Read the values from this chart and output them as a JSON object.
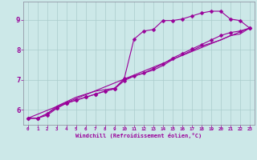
{
  "background_color": "#cce8e8",
  "grid_color": "#aacccc",
  "line_color": "#990099",
  "xlabel": "Windchill (Refroidissement éolien,°C)",
  "xlim": [
    -0.5,
    23.5
  ],
  "ylim": [
    5.5,
    9.6
  ],
  "xticks": [
    0,
    1,
    2,
    3,
    4,
    5,
    6,
    7,
    8,
    9,
    10,
    11,
    12,
    13,
    14,
    15,
    16,
    17,
    18,
    19,
    20,
    21,
    22,
    23
  ],
  "yticks": [
    6,
    7,
    8,
    9
  ],
  "line1_x": [
    0,
    1,
    2,
    3,
    4,
    5,
    6,
    7,
    8,
    9,
    10,
    11,
    12,
    13,
    14,
    15,
    16,
    17,
    18,
    19,
    20,
    21,
    22,
    23
  ],
  "line1_y": [
    5.72,
    5.72,
    5.82,
    6.05,
    6.22,
    6.32,
    6.42,
    6.52,
    6.62,
    6.7,
    7.05,
    8.35,
    8.62,
    8.67,
    8.97,
    8.97,
    9.02,
    9.12,
    9.22,
    9.28,
    9.28,
    9.02,
    8.97,
    8.72
  ],
  "line2_x": [
    0,
    1,
    2,
    3,
    4,
    5,
    6,
    7,
    8,
    9,
    10,
    11,
    12,
    13,
    14,
    15,
    16,
    17,
    18,
    19,
    20,
    21,
    22,
    23
  ],
  "line2_y": [
    5.72,
    5.72,
    5.87,
    6.07,
    6.22,
    6.32,
    6.42,
    6.52,
    6.62,
    6.7,
    6.97,
    7.12,
    7.22,
    7.37,
    7.52,
    7.72,
    7.87,
    8.02,
    8.17,
    8.32,
    8.47,
    8.57,
    8.62,
    8.72
  ],
  "line3_x": [
    0,
    1,
    2,
    3,
    4,
    5,
    6,
    7,
    8,
    9,
    10,
    11,
    12,
    13,
    14,
    15,
    16,
    17,
    18,
    19,
    20,
    21,
    22,
    23
  ],
  "line3_y": [
    5.72,
    5.72,
    5.87,
    6.12,
    6.27,
    6.42,
    6.52,
    6.62,
    6.67,
    6.72,
    7.02,
    7.12,
    7.22,
    7.32,
    7.47,
    7.67,
    7.82,
    7.97,
    8.12,
    8.22,
    8.32,
    8.47,
    8.52,
    8.72
  ],
  "line4_x": [
    0,
    23
  ],
  "line4_y": [
    5.72,
    8.72
  ]
}
